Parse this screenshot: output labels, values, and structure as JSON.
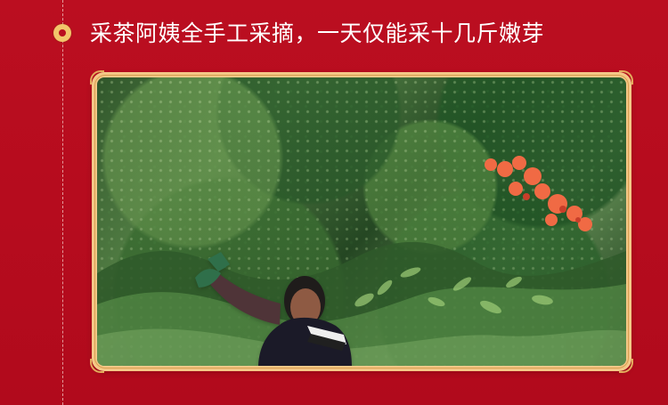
{
  "caption": {
    "text": "采茶阿姨全手工采摘，一天仅能采十几斤嫩芽"
  },
  "colors": {
    "background": "#b90d1f",
    "frame": "#f4c887",
    "accent": "#f2c56b"
  },
  "photo": {
    "icon_name": "tea-picking-photo"
  }
}
